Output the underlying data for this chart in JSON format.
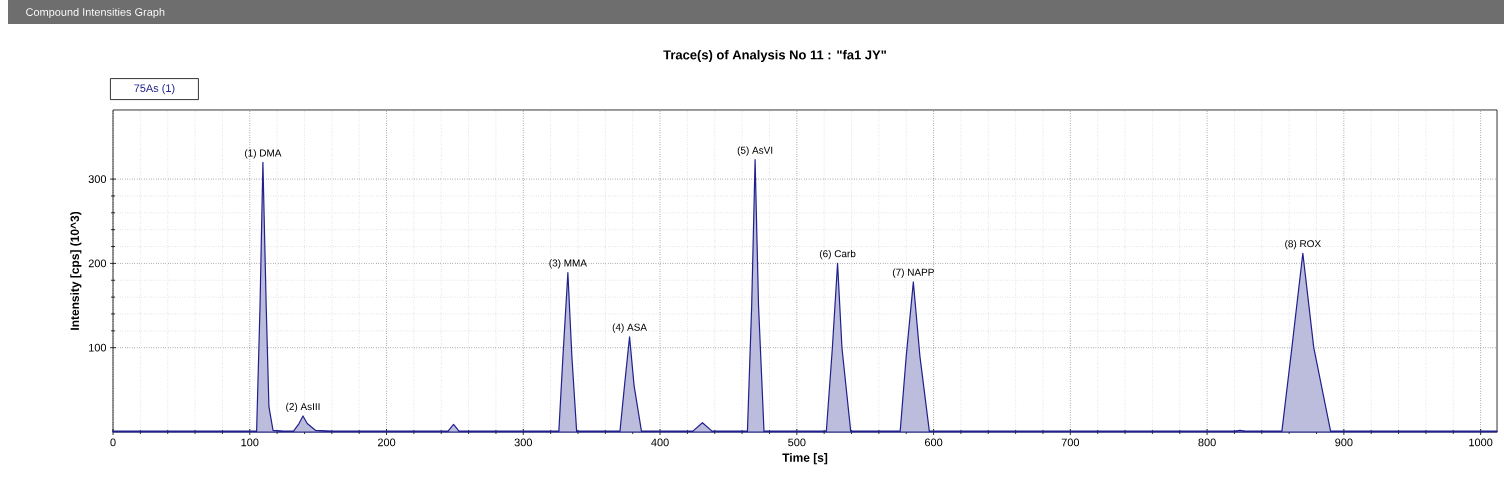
{
  "chart_data": {
    "type": "area",
    "title": "Trace(s) of Analysis No 11 : \"fa1 JY\"",
    "xlabel": "Time [s]",
    "ylabel": "Intensity [cps] (10^3)",
    "x": [
      0,
      100,
      105,
      107.5,
      109.6,
      112,
      114,
      117,
      125,
      132,
      136,
      138.9,
      142,
      148,
      160,
      240,
      245,
      249,
      253,
      258,
      320,
      326,
      329,
      332.6,
      335.5,
      339,
      345,
      365,
      370.7,
      374,
      377.7,
      381,
      386.4,
      395,
      420,
      424,
      431,
      438,
      445,
      460,
      463.9,
      467,
      469.5,
      472,
      476,
      485,
      515,
      521.6,
      526,
      529.8,
      533,
      539.4,
      550,
      570,
      575.6,
      580,
      585.2,
      590,
      596.9,
      610,
      820,
      824,
      828,
      850,
      854.7,
      862,
      870,
      878,
      890.3,
      900,
      1012
    ],
    "series": [
      {
        "name": "75As (1)",
        "color": "#20208c",
        "values": [
          1,
          1,
          1,
          150,
          320,
          150,
          30,
          2,
          1,
          1,
          10,
          19,
          10,
          2,
          1,
          1,
          1,
          9,
          1,
          1,
          1,
          1,
          90,
          189,
          90,
          1,
          1,
          1,
          1,
          55,
          113,
          55,
          1,
          1,
          1,
          1,
          11,
          1,
          1,
          1,
          1,
          150,
          323,
          150,
          1,
          1,
          1,
          1,
          100,
          200,
          100,
          1,
          1,
          1,
          1,
          90,
          178,
          90,
          1,
          1,
          1,
          2,
          1,
          1,
          1,
          100,
          212,
          100,
          1,
          1,
          1
        ]
      }
    ],
    "xlim": [
      0,
      1012
    ],
    "ylim": [
      0,
      382
    ],
    "xticks": [
      0,
      100,
      200,
      300,
      400,
      500,
      600,
      700,
      800,
      900,
      1000
    ],
    "yticks": [
      100,
      200,
      300
    ],
    "grid": true,
    "legend": "top left",
    "marker": "none",
    "annotations": [
      "Compound Intensities Graph",
      {
        "text": "(1) DMA",
        "x": 109.6,
        "y": 319.5
      },
      {
        "text": "(2) AsIII",
        "x": 138.9,
        "y": 18.6
      },
      {
        "text": "(3) MMA",
        "x": 332.6,
        "y": 189
      },
      {
        "text": "(4) ASA",
        "x": 377.7,
        "y": 112.8
      },
      {
        "text": "(5) AsVI",
        "x": 469.5,
        "y": 322.7
      },
      {
        "text": "(6) Carb",
        "x": 529.8,
        "y": 200
      },
      {
        "text": "(7) NAPP",
        "x": 585.2,
        "y": 178
      },
      {
        "text": "(8) ROX",
        "x": 870,
        "y": 211.9
      }
    ]
  }
}
